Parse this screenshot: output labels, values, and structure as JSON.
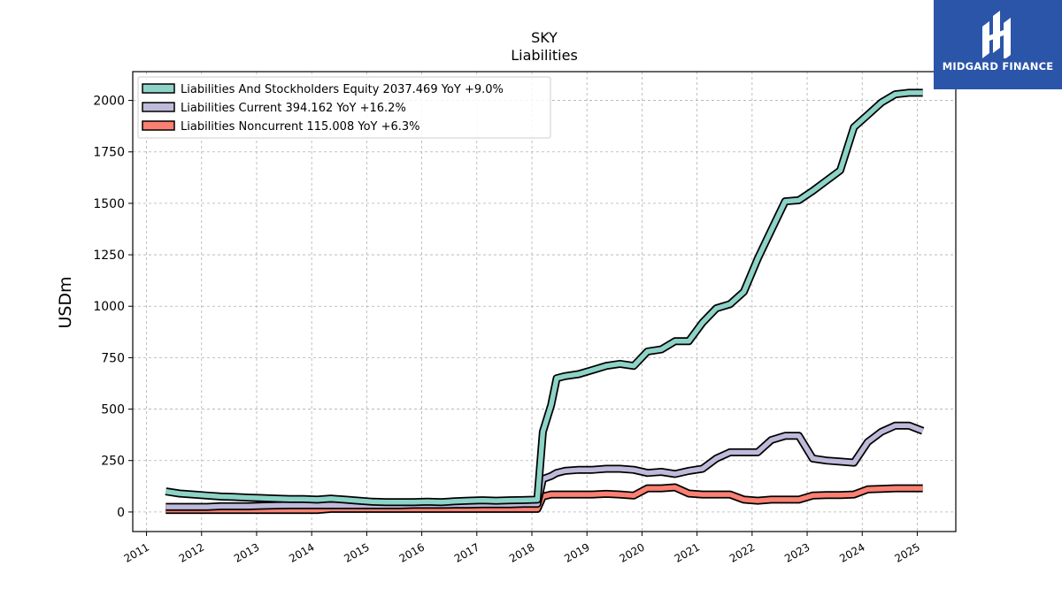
{
  "logo": {
    "text": "MIDGARD FINANCE"
  },
  "chart_data": {
    "type": "line",
    "title": "SKY",
    "subtitle": "Liabilities",
    "xlabel": "",
    "ylabel": "USDm",
    "xlim": [
      2010.75,
      2025.7
    ],
    "ylim": [
      -95,
      2140
    ],
    "yticks": [
      0,
      250,
      500,
      750,
      1000,
      1250,
      1500,
      1750,
      2000
    ],
    "xticks": [
      "2011",
      "2012",
      "2013",
      "2014",
      "2015",
      "2016",
      "2017",
      "2018",
      "2019",
      "2020",
      "2021",
      "2022",
      "2023",
      "2024",
      "2025"
    ],
    "grid": true,
    "legend_position": "top-left",
    "series": [
      {
        "name": "Liabilities And Stockholders Equity",
        "legend": "Liabilities And Stockholders Equity  2037.469 YoY +9.0%",
        "color": "#8dd3c7",
        "x": [
          2011.35,
          2011.6,
          2011.85,
          2012.1,
          2012.35,
          2012.6,
          2012.85,
          2013.1,
          2013.35,
          2013.6,
          2013.85,
          2014.1,
          2014.35,
          2014.6,
          2014.85,
          2015.1,
          2015.35,
          2015.6,
          2015.85,
          2016.1,
          2016.35,
          2016.6,
          2016.85,
          2017.1,
          2017.35,
          2017.6,
          2017.85,
          2018.1,
          2018.2,
          2018.35,
          2018.45,
          2018.6,
          2018.85,
          2019.1,
          2019.35,
          2019.6,
          2019.85,
          2020.1,
          2020.35,
          2020.6,
          2020.85,
          2021.1,
          2021.35,
          2021.6,
          2021.85,
          2022.1,
          2022.35,
          2022.6,
          2022.85,
          2023.1,
          2023.35,
          2023.6,
          2023.85,
          2024.1,
          2024.35,
          2024.6,
          2024.85,
          2025.1
        ],
        "y": [
          100,
          90,
          85,
          80,
          75,
          73,
          70,
          68,
          65,
          63,
          63,
          60,
          65,
          60,
          55,
          50,
          48,
          48,
          48,
          50,
          48,
          52,
          55,
          57,
          55,
          57,
          58,
          60,
          390,
          520,
          650,
          660,
          670,
          690,
          710,
          720,
          710,
          780,
          790,
          830,
          830,
          920,
          990,
          1010,
          1070,
          1230,
          1370,
          1510,
          1515,
          1560,
          1610,
          1660,
          1870,
          1930,
          1990,
          2030,
          2037.469,
          2037.469
        ]
      },
      {
        "name": "Liabilities Current",
        "legend": "Liabilities Current  394.162 YoY +16.2%",
        "color": "#bebada",
        "x": [
          2011.35,
          2011.6,
          2011.85,
          2012.1,
          2012.35,
          2012.6,
          2012.85,
          2013.1,
          2013.35,
          2013.6,
          2013.85,
          2014.1,
          2014.35,
          2014.6,
          2014.85,
          2015.1,
          2015.35,
          2015.6,
          2015.85,
          2016.1,
          2016.35,
          2016.6,
          2016.85,
          2017.1,
          2017.35,
          2017.6,
          2017.85,
          2018.1,
          2018.2,
          2018.35,
          2018.45,
          2018.6,
          2018.85,
          2019.1,
          2019.35,
          2019.6,
          2019.85,
          2020.1,
          2020.35,
          2020.6,
          2020.85,
          2021.1,
          2021.35,
          2021.6,
          2021.85,
          2022.1,
          2022.35,
          2022.6,
          2022.85,
          2023.1,
          2023.35,
          2023.6,
          2023.85,
          2024.1,
          2024.35,
          2024.6,
          2024.85,
          2025.1
        ],
        "y": [
          25,
          25,
          25,
          25,
          28,
          28,
          28,
          30,
          32,
          33,
          33,
          33,
          33,
          33,
          33,
          33,
          33,
          33,
          35,
          35,
          35,
          36,
          36,
          38,
          38,
          38,
          40,
          40,
          160,
          175,
          190,
          200,
          205,
          205,
          210,
          210,
          205,
          190,
          195,
          185,
          200,
          210,
          260,
          290,
          290,
          290,
          350,
          370,
          370,
          260,
          250,
          245,
          240,
          340,
          390,
          420,
          420,
          394.162
        ]
      },
      {
        "name": "Liabilities Noncurrent",
        "legend": "Liabilities Noncurrent  115.008 YoY +6.3%",
        "color": "#fb8072",
        "x": [
          2011.35,
          2011.6,
          2011.85,
          2012.1,
          2012.35,
          2012.6,
          2012.85,
          2013.1,
          2013.35,
          2013.6,
          2013.85,
          2014.1,
          2014.35,
          2014.6,
          2014.85,
          2015.1,
          2015.35,
          2015.6,
          2015.85,
          2016.1,
          2016.35,
          2016.6,
          2016.85,
          2017.1,
          2017.35,
          2017.6,
          2017.85,
          2018.1,
          2018.2,
          2018.35,
          2018.45,
          2018.6,
          2018.85,
          2019.1,
          2019.35,
          2019.6,
          2019.85,
          2020.1,
          2020.35,
          2020.6,
          2020.85,
          2021.1,
          2021.35,
          2021.6,
          2021.85,
          2022.1,
          2022.35,
          2022.6,
          2022.85,
          2023.1,
          2023.35,
          2023.6,
          2023.85,
          2024.1,
          2024.35,
          2024.6,
          2024.85,
          2025.1
        ],
        "y": [
          10,
          10,
          10,
          10,
          10,
          10,
          10,
          10,
          10,
          10,
          10,
          10,
          15,
          15,
          15,
          15,
          15,
          15,
          15,
          15,
          15,
          15,
          15,
          15,
          15,
          15,
          15,
          15,
          75,
          85,
          85,
          85,
          85,
          85,
          88,
          85,
          80,
          115,
          115,
          120,
          90,
          85,
          85,
          85,
          60,
          55,
          60,
          60,
          60,
          80,
          82,
          82,
          85,
          110,
          112,
          115,
          115,
          115.008
        ]
      }
    ]
  }
}
